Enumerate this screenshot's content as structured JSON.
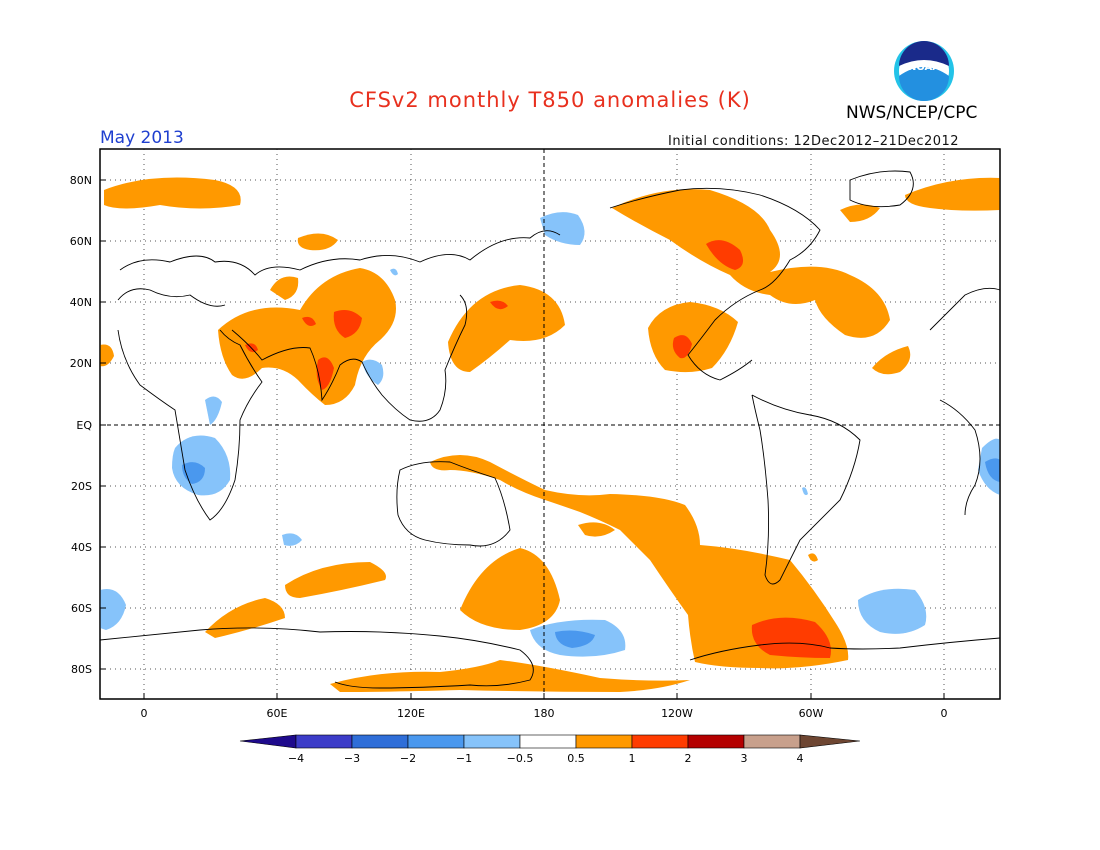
{
  "header": {
    "title": "CFSv2 monthly T850 anomalies (K)",
    "agency": "NWS/NCEP/CPC",
    "valid_month": "May 2013",
    "initial_conditions": "Initial conditions: 12Dec2012–21Dec2012",
    "logo_text": "NOAA"
  },
  "axes": {
    "y_labels": [
      "80N",
      "60N",
      "40N",
      "20N",
      "EQ",
      "20S",
      "40S",
      "60S",
      "80S"
    ],
    "x_labels": [
      "0",
      "60E",
      "120E",
      "180",
      "120W",
      "60W",
      "0"
    ]
  },
  "colorbar": {
    "labels": [
      "−4",
      "−3",
      "−2",
      "−1",
      "−0.5",
      "0.5",
      "1",
      "2",
      "3",
      "4"
    ],
    "colors": [
      "#1e0a8c",
      "#3c3cc8",
      "#2f6ed8",
      "#4a98ee",
      "#86c3fa",
      "#ffffff",
      "#ff9900",
      "#ff3c00",
      "#b40000",
      "#c8a08c",
      "#6e4632"
    ]
  },
  "colors": {
    "positive_1": "#ff9900",
    "positive_2": "#ff3c00",
    "negative_1": "#86c3fa",
    "negative_2": "#4a98ee",
    "title": "#e8301e",
    "month": "#1f3fcf"
  }
}
